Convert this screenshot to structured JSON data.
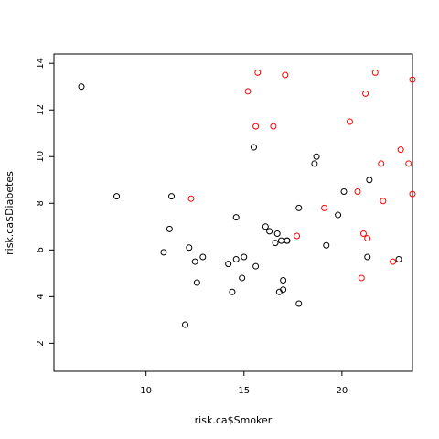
{
  "chart_data": {
    "type": "scatter",
    "title": "",
    "xlabel": "risk.ca$Smoker",
    "ylabel": "risk.ca$Diabetes",
    "xlim": [
      5.3,
      23.6
    ],
    "ylim": [
      0.8,
      14.4
    ],
    "x_ticks": [
      10,
      15,
      20
    ],
    "y_ticks": [
      2,
      4,
      6,
      8,
      10,
      12,
      14
    ],
    "x_tick_labels": [
      "10",
      "15",
      "20"
    ],
    "y_tick_labels": [
      "2",
      "4",
      "6",
      "8",
      "10",
      "12",
      "14"
    ],
    "grid": false,
    "colors": {
      "black": "#000000",
      "red": "#ff0000"
    },
    "series": [
      {
        "color": "#000000",
        "points": [
          [
            6.7,
            13.0
          ],
          [
            8.5,
            8.3
          ],
          [
            10.9,
            5.9
          ],
          [
            11.2,
            6.9
          ],
          [
            11.3,
            8.3
          ],
          [
            12.0,
            2.8
          ],
          [
            12.2,
            6.1
          ],
          [
            12.5,
            5.5
          ],
          [
            12.6,
            4.6
          ],
          [
            12.9,
            5.7
          ],
          [
            14.2,
            5.4
          ],
          [
            14.4,
            4.2
          ],
          [
            14.6,
            7.4
          ],
          [
            14.6,
            5.6
          ],
          [
            14.9,
            4.8
          ],
          [
            15.0,
            5.7
          ],
          [
            15.5,
            10.4
          ],
          [
            15.6,
            5.3
          ],
          [
            16.1,
            7.0
          ],
          [
            16.3,
            6.8
          ],
          [
            16.6,
            6.3
          ],
          [
            16.7,
            6.7
          ],
          [
            16.8,
            4.2
          ],
          [
            16.9,
            6.4
          ],
          [
            17.0,
            4.3
          ],
          [
            17.0,
            4.7
          ],
          [
            17.2,
            6.4
          ],
          [
            17.2,
            6.4
          ],
          [
            17.8,
            7.8
          ],
          [
            17.8,
            3.7
          ],
          [
            18.6,
            9.7
          ],
          [
            18.7,
            10.0
          ],
          [
            19.2,
            6.2
          ],
          [
            19.8,
            7.5
          ],
          [
            20.1,
            8.5
          ],
          [
            21.3,
            5.7
          ],
          [
            21.4,
            9.0
          ],
          [
            22.9,
            5.6
          ]
        ]
      },
      {
        "color": "#ff0000",
        "points": [
          [
            12.3,
            8.2
          ],
          [
            15.2,
            12.8
          ],
          [
            15.6,
            11.3
          ],
          [
            15.7,
            13.6
          ],
          [
            16.5,
            11.3
          ],
          [
            17.1,
            13.5
          ],
          [
            17.7,
            6.6
          ],
          [
            19.1,
            7.8
          ],
          [
            20.4,
            11.5
          ],
          [
            20.8,
            8.5
          ],
          [
            21.0,
            4.8
          ],
          [
            21.1,
            6.7
          ],
          [
            21.2,
            12.7
          ],
          [
            21.3,
            6.5
          ],
          [
            21.7,
            13.6
          ],
          [
            22.0,
            9.7
          ],
          [
            22.1,
            8.1
          ],
          [
            22.6,
            5.5
          ],
          [
            23.0,
            10.3
          ],
          [
            23.4,
            9.7
          ],
          [
            23.6,
            13.3
          ],
          [
            23.6,
            8.4
          ]
        ]
      }
    ]
  }
}
